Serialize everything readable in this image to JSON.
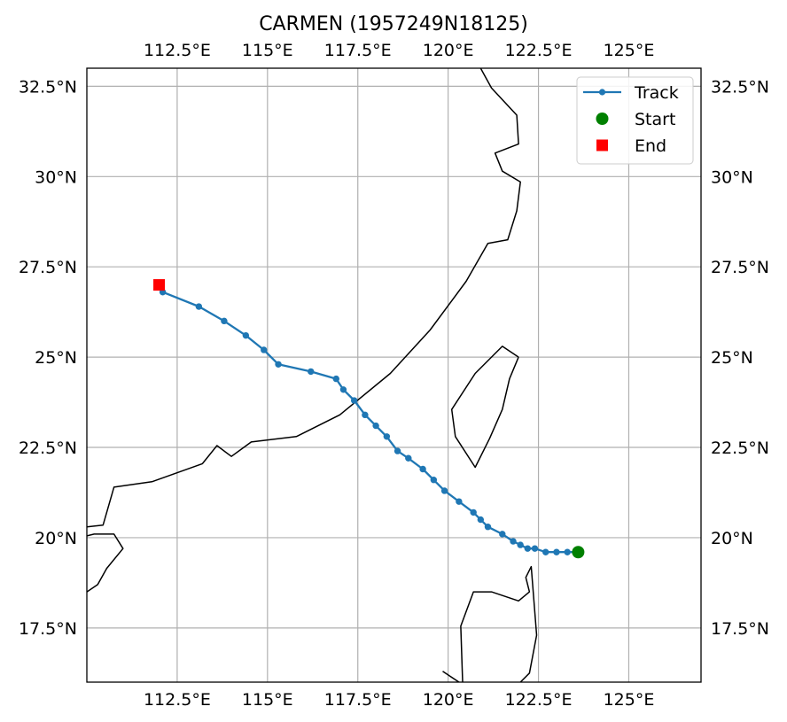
{
  "title": "CARMEN (1957249N18125)",
  "map": {
    "extent": {
      "lon_min": 110.0,
      "lon_max": 127.0,
      "lat_min": 16.0,
      "lat_max": 33.0
    },
    "lon_ticks": [
      {
        "value": 112.5,
        "label": "112.5°E"
      },
      {
        "value": 115.0,
        "label": "115°E"
      },
      {
        "value": 117.5,
        "label": "117.5°E"
      },
      {
        "value": 120.0,
        "label": "120°E"
      },
      {
        "value": 122.5,
        "label": "122.5°E"
      },
      {
        "value": 125.0,
        "label": "125°E"
      }
    ],
    "lat_ticks": [
      {
        "value": 17.5,
        "label": "17.5°N"
      },
      {
        "value": 20.0,
        "label": "20°N"
      },
      {
        "value": 22.5,
        "label": "22.5°N"
      },
      {
        "value": 25.0,
        "label": "25°N"
      },
      {
        "value": 27.5,
        "label": "27.5°N"
      },
      {
        "value": 30.0,
        "label": "30°N"
      },
      {
        "value": 32.5,
        "label": "32.5°N"
      }
    ],
    "gridlines": true,
    "colors": {
      "track": "#1f77b4",
      "start": "#008000",
      "end": "#ff0000",
      "coastline": "#000000",
      "grid": "#b0b0b0"
    }
  },
  "legend": {
    "placement": "top-right",
    "entries": [
      {
        "key": "track",
        "label": "Track"
      },
      {
        "key": "start",
        "label": "Start"
      },
      {
        "key": "end",
        "label": "End"
      }
    ]
  },
  "track": {
    "points": [
      [
        123.6,
        19.6
      ],
      [
        123.3,
        19.6
      ],
      [
        123.0,
        19.6
      ],
      [
        122.7,
        19.6
      ],
      [
        122.4,
        19.7
      ],
      [
        122.2,
        19.7
      ],
      [
        122.0,
        19.8
      ],
      [
        121.8,
        19.9
      ],
      [
        121.5,
        20.1
      ],
      [
        121.1,
        20.3
      ],
      [
        120.9,
        20.5
      ],
      [
        120.7,
        20.7
      ],
      [
        120.3,
        21.0
      ],
      [
        119.9,
        21.3
      ],
      [
        119.6,
        21.6
      ],
      [
        119.3,
        21.9
      ],
      [
        118.9,
        22.2
      ],
      [
        118.6,
        22.4
      ],
      [
        118.3,
        22.8
      ],
      [
        118.0,
        23.1
      ],
      [
        117.7,
        23.4
      ],
      [
        117.4,
        23.8
      ],
      [
        117.1,
        24.1
      ],
      [
        116.9,
        24.4
      ],
      [
        116.2,
        24.6
      ],
      [
        115.3,
        24.8
      ],
      [
        114.9,
        25.2
      ],
      [
        114.4,
        25.6
      ],
      [
        113.8,
        26.0
      ],
      [
        113.1,
        26.4
      ],
      [
        112.1,
        26.8
      ],
      [
        112.0,
        27.0
      ]
    ],
    "start": [
      123.6,
      19.6
    ],
    "end": [
      112.0,
      27.0
    ]
  },
  "coastlines": [
    [
      [
        110.0,
        20.3
      ],
      [
        110.45,
        20.35
      ],
      [
        110.75,
        21.4
      ],
      [
        111.8,
        21.55
      ],
      [
        113.2,
        22.05
      ],
      [
        113.6,
        22.55
      ],
      [
        114.0,
        22.25
      ],
      [
        114.55,
        22.65
      ],
      [
        115.8,
        22.8
      ],
      [
        117.0,
        23.4
      ],
      [
        118.4,
        24.55
      ],
      [
        119.5,
        25.75
      ],
      [
        120.5,
        27.1
      ],
      [
        121.1,
        28.15
      ],
      [
        121.65,
        28.25
      ],
      [
        121.9,
        29.05
      ],
      [
        122.0,
        29.85
      ],
      [
        121.5,
        30.15
      ],
      [
        121.3,
        30.65
      ],
      [
        121.95,
        30.9
      ],
      [
        121.9,
        31.7
      ],
      [
        121.2,
        32.45
      ],
      [
        120.9,
        33.0
      ]
    ],
    [
      [
        110.0,
        20.05
      ],
      [
        110.2,
        20.1
      ],
      [
        110.75,
        20.1
      ],
      [
        111.0,
        19.7
      ],
      [
        110.55,
        19.15
      ],
      [
        110.3,
        18.7
      ],
      [
        110.0,
        18.5
      ]
    ],
    [
      [
        121.95,
        25.0
      ],
      [
        121.5,
        25.3
      ],
      [
        120.75,
        24.55
      ],
      [
        120.1,
        23.55
      ],
      [
        120.2,
        22.8
      ],
      [
        120.75,
        21.95
      ],
      [
        121.15,
        22.75
      ],
      [
        121.5,
        23.55
      ],
      [
        121.7,
        24.4
      ],
      [
        121.95,
        25.0
      ]
    ],
    [
      [
        119.85,
        16.3
      ],
      [
        120.3,
        16.0
      ]
    ],
    [
      [
        120.4,
        16.0
      ],
      [
        120.35,
        17.55
      ],
      [
        120.7,
        18.5
      ],
      [
        121.2,
        18.5
      ],
      [
        121.95,
        18.25
      ],
      [
        122.25,
        18.5
      ],
      [
        122.15,
        18.9
      ],
      [
        122.3,
        19.2
      ],
      [
        122.45,
        17.3
      ],
      [
        122.25,
        16.25
      ],
      [
        122.0,
        16.0
      ]
    ]
  ]
}
